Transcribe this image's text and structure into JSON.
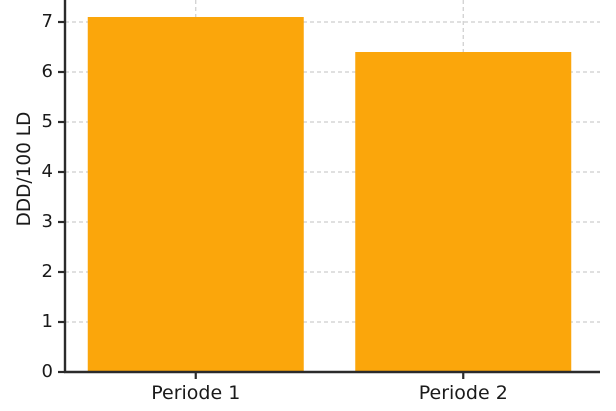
{
  "chart_data": {
    "type": "bar",
    "title": "",
    "categories": [
      "Periode 1",
      "Periode 2"
    ],
    "values": [
      7.1,
      6.4
    ],
    "xlabel": "",
    "ylabel": "DDD/100 LD",
    "yticks": [
      0,
      1,
      2,
      3,
      4,
      5,
      6,
      7
    ],
    "ylim": [
      0,
      7.44
    ],
    "legend": "none",
    "grid": "dashed, both axes, behind bars",
    "colors": {
      "bar": "#FBA60B",
      "gridline": "#cdcdcd",
      "axis": "#2b2b2b",
      "tick_label": "#1a1a1a",
      "background": "#ffffff"
    }
  }
}
